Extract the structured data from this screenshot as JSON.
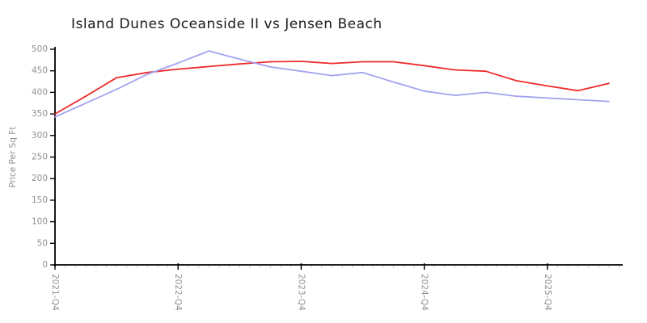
{
  "chart": {
    "title": "Island Dunes Oceanside II vs Jensen Beach"
  },
  "chart_data": {
    "type": "line",
    "title": "Island Dunes Oceanside II vs Jensen Beach",
    "xlabel": "",
    "ylabel": "Price Per Sq Ft",
    "ylim": [
      0,
      500
    ],
    "ytick_interval": 50,
    "grid": false,
    "legend": "none",
    "axis_color": "#000000",
    "tick_label_color": "#909090",
    "minor_tick_color": "#c9c9c9",
    "x_major_ticks": [
      "2021-Q4",
      "2022-Q4",
      "2023-Q4",
      "2024-Q4",
      "2025-Q4"
    ],
    "categories": [
      "2021-Q4",
      "2022-Q1",
      "2022-Q2",
      "2022-Q3",
      "2022-Q4",
      "2023-Q1",
      "2023-Q2",
      "2023-Q3",
      "2023-Q4",
      "2024-Q1",
      "2024-Q2",
      "2024-Q3",
      "2024-Q4",
      "2025-Q1",
      "2025-Q2",
      "2025-Q3",
      "2025-Q4",
      "2026-Q1",
      "2026-Q2"
    ],
    "series": [
      {
        "name": "Island Dunes Oceanside II",
        "color": "#ee2b2b",
        "values": [
          350,
          391,
          434,
          446,
          454,
          460,
          466,
          471,
          472,
          467,
          471,
          471,
          462,
          452,
          449,
          427,
          415,
          404,
          421
        ]
      },
      {
        "name": "Jensen Beach",
        "color": "#a3a3f0",
        "values": [
          343,
          375,
          407,
          442,
          468,
          496,
          477,
          459,
          449,
          439,
          446,
          424,
          403,
          393,
          400,
          391,
          387,
          383,
          379
        ]
      }
    ]
  }
}
